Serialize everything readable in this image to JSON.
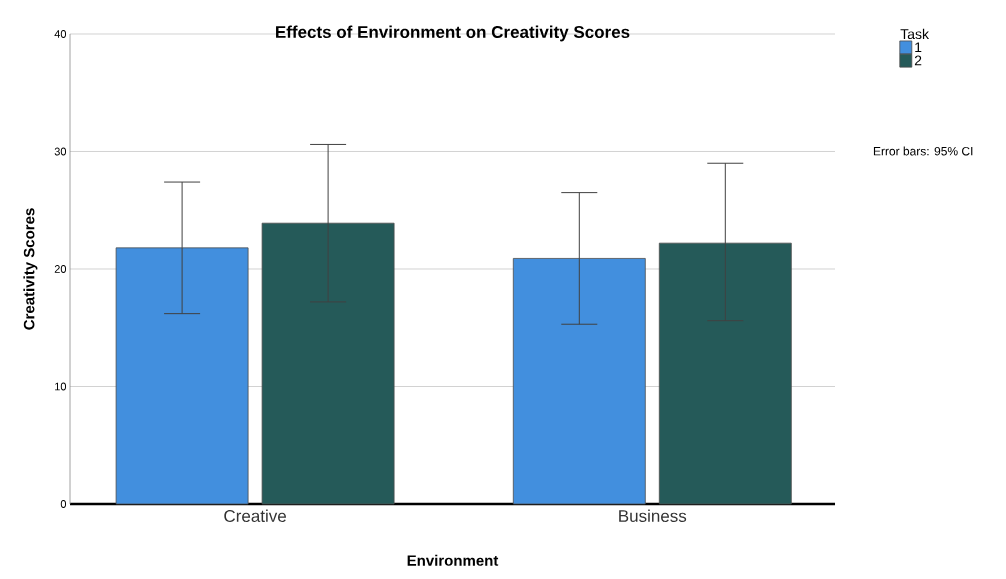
{
  "chart_data": {
    "type": "bar",
    "title": "Effects of Environment on Creativity Scores",
    "xlabel": "Environment",
    "ylabel": "Creativity Scores",
    "legend_title": "Task",
    "categories": [
      "Creative",
      "Business"
    ],
    "series": [
      {
        "name": "1",
        "color": "#428fde",
        "values": [
          21.8,
          20.9
        ],
        "errors": [
          [
            16.2,
            27.4
          ],
          [
            15.3,
            26.5
          ]
        ]
      },
      {
        "name": "2",
        "color": "#255a59",
        "values": [
          23.9,
          22.2
        ],
        "errors": [
          [
            17.2,
            30.6
          ],
          [
            15.6,
            29.0
          ]
        ]
      }
    ],
    "ylim": [
      0,
      40
    ],
    "yticks": [
      0,
      10,
      20,
      30,
      40
    ],
    "grid": "y",
    "legend": "top right",
    "annotations": [
      "Error bars: 95% CI"
    ]
  }
}
